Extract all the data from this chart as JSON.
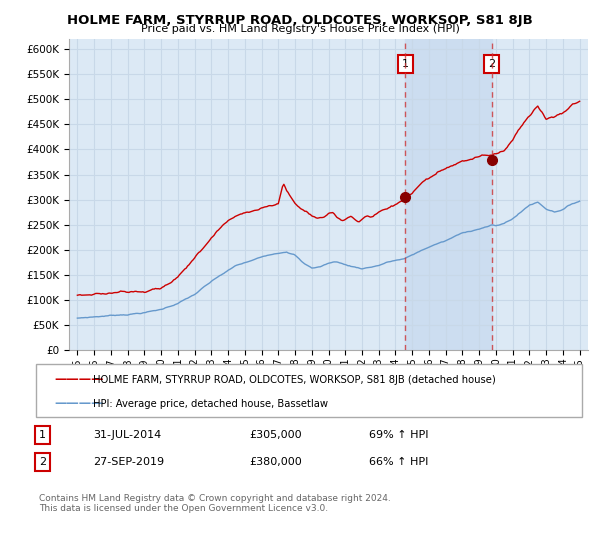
{
  "title": "HOLME FARM, STYRRUP ROAD, OLDCOTES, WORKSOP, S81 8JB",
  "subtitle": "Price paid vs. HM Land Registry's House Price Index (HPI)",
  "ylabel_ticks": [
    "£0",
    "£50K",
    "£100K",
    "£150K",
    "£200K",
    "£250K",
    "£300K",
    "£350K",
    "£400K",
    "£450K",
    "£500K",
    "£550K",
    "£600K"
  ],
  "ylim": [
    0,
    620000
  ],
  "ytick_vals": [
    0,
    50000,
    100000,
    150000,
    200000,
    250000,
    300000,
    350000,
    400000,
    450000,
    500000,
    550000,
    600000
  ],
  "x_start_year": 1995,
  "x_end_year": 2025,
  "sale1_year": 2014.58,
  "sale1_price": 305000,
  "sale1_label": "1",
  "sale2_year": 2019.75,
  "sale2_price": 380000,
  "sale2_label": "2",
  "red_line_color": "#cc0000",
  "blue_line_color": "#6699cc",
  "dashed_red_color": "#cc3333",
  "legend_red_label": "HOLME FARM, STYRRUP ROAD, OLDCOTES, WORKSOP, S81 8JB (detached house)",
  "legend_blue_label": "HPI: Average price, detached house, Bassetlaw",
  "annotation1_date": "31-JUL-2014",
  "annotation1_price": "£305,000",
  "annotation1_hpi": "69% ↑ HPI",
  "annotation2_date": "27-SEP-2019",
  "annotation2_price": "£380,000",
  "annotation2_hpi": "66% ↑ HPI",
  "footer": "Contains HM Land Registry data © Crown copyright and database right 2024.\nThis data is licensed under the Open Government Licence v3.0.",
  "background_color": "#ffffff",
  "plot_bg_color": "#dce9f5",
  "grid_color": "#c8d8e8",
  "span_color": "#ccddf0"
}
